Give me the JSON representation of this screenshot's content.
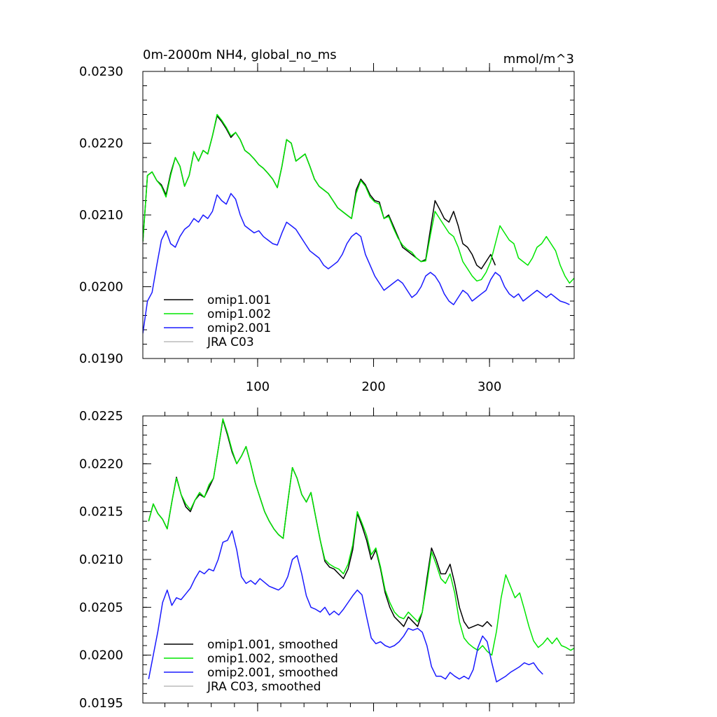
{
  "chart_data": [
    {
      "type": "line",
      "title": "0m-2000m NH4, global_no_ms",
      "units": "mmol/m^3",
      "xlabel": "",
      "ylabel": "",
      "xlim": [
        1,
        373
      ],
      "ylim": [
        0.019,
        0.023
      ],
      "x_ticks": [
        100,
        200,
        300
      ],
      "x_tick_labels": [
        "100",
        "200",
        "300"
      ],
      "y_ticks": [
        0.019,
        0.02,
        0.021,
        0.022,
        0.023
      ],
      "y_tick_labels": [
        "0.0190",
        "0.0200",
        "0.0210",
        "0.0220",
        "0.0230"
      ],
      "legend_position": "bottom-left",
      "series": [
        {
          "name": "omip1.001",
          "color": "#000000",
          "x_start": 1,
          "x_step": 4,
          "values": [
            0.02063,
            0.02155,
            0.0216,
            0.02148,
            0.02142,
            0.02128,
            0.02158,
            0.0218,
            0.02168,
            0.0214,
            0.02155,
            0.02188,
            0.02175,
            0.0219,
            0.02185,
            0.0221,
            0.02238,
            0.0223,
            0.0222,
            0.02208,
            0.02215,
            0.02205,
            0.0219,
            0.02185,
            0.02178,
            0.0217,
            0.02165,
            0.02158,
            0.0215,
            0.02138,
            0.02168,
            0.02205,
            0.022,
            0.02175,
            0.0218,
            0.02185,
            0.02168,
            0.0215,
            0.0214,
            0.02135,
            0.0213,
            0.0212,
            0.0211,
            0.02105,
            0.021,
            0.02095,
            0.02135,
            0.0215,
            0.02142,
            0.02128,
            0.0212,
            0.02118,
            0.02095,
            0.021,
            0.02085,
            0.0207,
            0.02055,
            0.0205,
            0.02045,
            0.0204,
            0.02035,
            0.02038,
            0.0208,
            0.0212,
            0.02108,
            0.02095,
            0.0209,
            0.02105,
            0.02085,
            0.0206,
            0.02055,
            0.02045,
            0.0203,
            0.02025,
            0.02035,
            0.02045,
            0.0203
          ]
        },
        {
          "name": "omip1.002",
          "color": "#00e600",
          "x_start": 1,
          "x_step": 4,
          "values": [
            0.02063,
            0.02155,
            0.0216,
            0.02148,
            0.0214,
            0.02125,
            0.02155,
            0.0218,
            0.02168,
            0.0214,
            0.02155,
            0.02188,
            0.02175,
            0.0219,
            0.02185,
            0.0221,
            0.0224,
            0.02232,
            0.02222,
            0.0221,
            0.02215,
            0.02205,
            0.0219,
            0.02185,
            0.02178,
            0.0217,
            0.02165,
            0.02158,
            0.0215,
            0.02138,
            0.02168,
            0.02205,
            0.022,
            0.02175,
            0.0218,
            0.02185,
            0.02168,
            0.0215,
            0.0214,
            0.02135,
            0.0213,
            0.0212,
            0.0211,
            0.02105,
            0.021,
            0.02095,
            0.0213,
            0.02148,
            0.0214,
            0.02125,
            0.02118,
            0.02115,
            0.02095,
            0.02098,
            0.02082,
            0.02068,
            0.02058,
            0.02052,
            0.02048,
            0.0204,
            0.02035,
            0.02036,
            0.02072,
            0.02105,
            0.02095,
            0.02085,
            0.02075,
            0.0207,
            0.02055,
            0.02035,
            0.02025,
            0.02015,
            0.02008,
            0.0201,
            0.0202,
            0.02035,
            0.0206,
            0.02085,
            0.02075,
            0.02065,
            0.0206,
            0.0204,
            0.02035,
            0.0203,
            0.0204,
            0.02055,
            0.0206,
            0.0207,
            0.0206,
            0.0205,
            0.0203,
            0.02015,
            0.02005,
            0.02012,
            0.0201
          ]
        },
        {
          "name": "omip2.001",
          "color": "#1a1aff",
          "x_start": 1,
          "x_step": 4,
          "values": [
            0.01935,
            0.0198,
            0.01992,
            0.0203,
            0.02065,
            0.02078,
            0.0206,
            0.02055,
            0.0207,
            0.0208,
            0.02085,
            0.02095,
            0.0209,
            0.021,
            0.02095,
            0.02105,
            0.02128,
            0.0212,
            0.02115,
            0.0213,
            0.02122,
            0.021,
            0.02085,
            0.0208,
            0.02075,
            0.02078,
            0.0207,
            0.02065,
            0.0206,
            0.02058,
            0.02075,
            0.0209,
            0.02085,
            0.0208,
            0.0207,
            0.0206,
            0.0205,
            0.02045,
            0.0204,
            0.0203,
            0.02025,
            0.0203,
            0.02035,
            0.02045,
            0.0206,
            0.0207,
            0.02075,
            0.0207,
            0.02045,
            0.0203,
            0.02015,
            0.02005,
            0.01995,
            0.02,
            0.02005,
            0.0201,
            0.02005,
            0.01995,
            0.01985,
            0.0199,
            0.02,
            0.02015,
            0.0202,
            0.02015,
            0.02005,
            0.0199,
            0.0198,
            0.01975,
            0.01985,
            0.01995,
            0.0199,
            0.0198,
            0.01985,
            0.0199,
            0.01995,
            0.0201,
            0.0202,
            0.02015,
            0.02,
            0.0199,
            0.01985,
            0.0199,
            0.0198,
            0.01985,
            0.0199,
            0.01995,
            0.0199,
            0.01985,
            0.0199,
            0.01985,
            0.0198,
            0.01978,
            0.01975
          ]
        },
        {
          "name": "JRA C03",
          "color": "#bbbbbb",
          "x_start": 1,
          "x_step": 4,
          "values": []
        }
      ]
    },
    {
      "type": "line",
      "title": "",
      "units": "",
      "xlabel": "",
      "ylabel": "",
      "xlim": [
        1,
        373
      ],
      "ylim": [
        0.0195,
        0.0225
      ],
      "x_ticks": [
        100,
        200,
        300
      ],
      "x_tick_labels": [],
      "y_ticks": [
        0.0195,
        0.02,
        0.0205,
        0.021,
        0.0215,
        0.022,
        0.0225
      ],
      "y_tick_labels": [
        "0.0195",
        "0.0200",
        "0.0205",
        "0.0210",
        "0.0215",
        "0.0220",
        "0.0225"
      ],
      "legend_position": "bottom-left",
      "series": [
        {
          "name": "omip1.001, smoothed",
          "color": "#000000",
          "x_start": 6,
          "x_step": 4,
          "values": [
            0.0214,
            0.02158,
            0.02148,
            0.02142,
            0.02132,
            0.0216,
            0.02186,
            0.02168,
            0.02155,
            0.0215,
            0.02162,
            0.02168,
            0.02165,
            0.02175,
            0.02185,
            0.02215,
            0.02246,
            0.0223,
            0.02212,
            0.022,
            0.02208,
            0.02218,
            0.022,
            0.0218,
            0.02165,
            0.0215,
            0.0214,
            0.02132,
            0.02126,
            0.02122,
            0.0216,
            0.02196,
            0.02185,
            0.02168,
            0.0216,
            0.0217,
            0.02145,
            0.0212,
            0.02098,
            0.02092,
            0.0209,
            0.02085,
            0.0208,
            0.0209,
            0.0211,
            0.02148,
            0.02135,
            0.0212,
            0.021,
            0.0211,
            0.0209,
            0.02065,
            0.0205,
            0.0204,
            0.02035,
            0.0203,
            0.0204,
            0.02035,
            0.0203,
            0.02045,
            0.0208,
            0.02112,
            0.021,
            0.02085,
            0.02085,
            0.02095,
            0.02075,
            0.0205,
            0.02035,
            0.02028,
            0.0203,
            0.02032,
            0.0203,
            0.02035,
            0.0203
          ]
        },
        {
          "name": "omip1.002, smoothed",
          "color": "#00e600",
          "x_start": 6,
          "x_step": 4,
          "values": [
            0.0214,
            0.02158,
            0.02148,
            0.02142,
            0.02132,
            0.0216,
            0.02185,
            0.02168,
            0.02158,
            0.02152,
            0.02162,
            0.0217,
            0.02165,
            0.02178,
            0.02185,
            0.02215,
            0.02247,
            0.02232,
            0.02214,
            0.022,
            0.02208,
            0.02218,
            0.022,
            0.0218,
            0.02165,
            0.0215,
            0.0214,
            0.02132,
            0.02126,
            0.02122,
            0.0216,
            0.02196,
            0.02185,
            0.02168,
            0.0216,
            0.0217,
            0.02145,
            0.0212,
            0.021,
            0.02095,
            0.02092,
            0.0209,
            0.02085,
            0.02095,
            0.02115,
            0.0215,
            0.02138,
            0.02125,
            0.02105,
            0.02112,
            0.02092,
            0.02068,
            0.02055,
            0.02045,
            0.0204,
            0.02038,
            0.02045,
            0.0204,
            0.02035,
            0.02045,
            0.02075,
            0.02108,
            0.02095,
            0.0208,
            0.02075,
            0.02085,
            0.02065,
            0.02035,
            0.02018,
            0.02012,
            0.02008,
            0.02005,
            0.0201,
            0.02004,
            0.02,
            0.02025,
            0.0206,
            0.02084,
            0.02072,
            0.0206,
            0.02065,
            0.02048,
            0.0203,
            0.02015,
            0.02008,
            0.02012,
            0.02018,
            0.02012,
            0.02018,
            0.0201,
            0.02008,
            0.02005,
            0.02008
          ]
        },
        {
          "name": "omip2.001, smoothed",
          "color": "#1a1aff",
          "x_start": 6,
          "x_step": 4,
          "values": [
            0.01975,
            0.02,
            0.02025,
            0.02055,
            0.02068,
            0.02052,
            0.0206,
            0.02058,
            0.02064,
            0.0207,
            0.0208,
            0.02088,
            0.02085,
            0.0209,
            0.02088,
            0.021,
            0.02118,
            0.0212,
            0.0213,
            0.0211,
            0.02082,
            0.02075,
            0.02078,
            0.02074,
            0.0208,
            0.02076,
            0.02072,
            0.0207,
            0.02068,
            0.02072,
            0.02082,
            0.021,
            0.02104,
            0.02085,
            0.02062,
            0.0205,
            0.02048,
            0.02045,
            0.0205,
            0.02042,
            0.02046,
            0.02042,
            0.02048,
            0.02055,
            0.02062,
            0.02068,
            0.02063,
            0.0204,
            0.02018,
            0.02012,
            0.02014,
            0.0201,
            0.02008,
            0.0201,
            0.02014,
            0.0202,
            0.02028,
            0.02026,
            0.02028,
            0.02024,
            0.0201,
            0.01988,
            0.01978,
            0.01978,
            0.01975,
            0.01982,
            0.01978,
            0.01975,
            0.01978,
            0.01975,
            0.01985,
            0.02008,
            0.0202,
            0.02014,
            0.01992,
            0.01972,
            0.01975,
            0.01978,
            0.01982,
            0.01985,
            0.01988,
            0.01992,
            0.0199,
            0.01992,
            0.01985,
            0.0198
          ]
        },
        {
          "name": "JRA C03, smoothed",
          "color": "#bbbbbb",
          "x_start": 6,
          "x_step": 4,
          "values": []
        }
      ]
    }
  ]
}
